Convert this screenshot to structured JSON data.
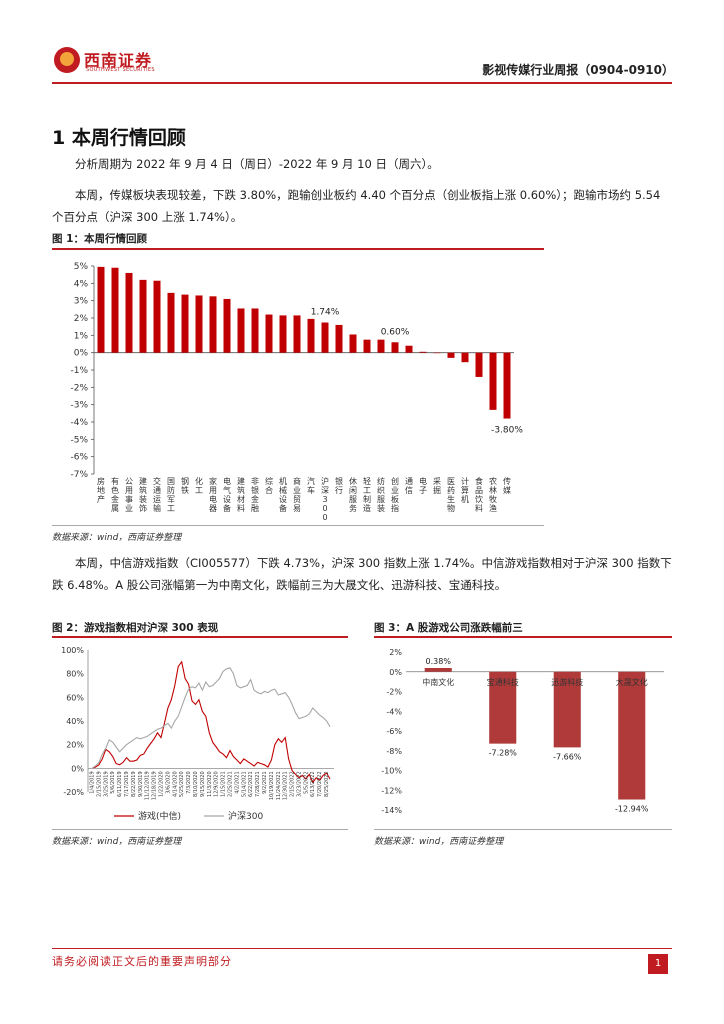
{
  "header": {
    "logo_cn": "西南证券",
    "logo_en": "SOUTHWEST SECURITIES",
    "report_title": "影视传媒行业周报（0904-0910）"
  },
  "section_title": "1  本周行情回顾",
  "paragraphs": [
    "分析周期为 2022 年 9 月 4 日（周日）-2022 年 9 月 10 日（周六）。",
    "本周，传媒板块表现较差，下跌 3.80%，跑输创业板约 4.40 个百分点（创业板指上涨 0.60%）；跑输市场约 5.54 个百分点（沪深 300 上涨 1.74%）。",
    "本周，中信游戏指数（CI005577）下跌 4.73%，沪深 300 指数上涨 1.74%。中信游戏指数相对于沪深 300 指数下跌 6.48%。A 股公司涨幅第一为中南文化，跌幅前三为大晟文化、迅游科技、宝通科技。"
  ],
  "figure1": {
    "title": "图 1：本周行情回顾",
    "source": "数据来源：wind，西南证券整理"
  },
  "figure2": {
    "title": "图 2：游戏指数相对沪深 300 表现",
    "legend_game": "游戏(中信)",
    "legend_hs300": "沪深300",
    "source": "数据来源：wind，西南证券整理"
  },
  "figure3": {
    "title": "图 3：A 股游戏公司涨跌幅前三",
    "source": "数据来源：wind，西南证券整理"
  },
  "footer": {
    "note": "请务必阅读正文后的重要声明部分",
    "page": "1"
  },
  "colors": {
    "brand_red": "#c01b20",
    "bar_red": "#c00000",
    "bar_dark_red": "#b03a3a",
    "line_gray": "#a6a6a6"
  },
  "chart_data": [
    {
      "type": "bar",
      "title": "",
      "categories": [
        "房地产",
        "有色金属",
        "公用事业",
        "建筑装饰",
        "交通运输",
        "国防军工",
        "钢铁",
        "化工",
        "家用电器",
        "电气设备",
        "建筑材料",
        "非银金融",
        "综合",
        "机械设备",
        "商业贸易",
        "汽车",
        "沪深300",
        "银行",
        "休闲服务",
        "轻工制造",
        "纺织服装",
        "创业板指",
        "通信",
        "电子",
        "采掘",
        "医药生物",
        "计算机",
        "食品饮料",
        "农林牧渔",
        "传媒"
      ],
      "values": [
        4.95,
        4.9,
        4.6,
        4.2,
        4.15,
        3.45,
        3.35,
        3.3,
        3.25,
        3.1,
        2.55,
        2.55,
        2.2,
        2.15,
        2.15,
        1.95,
        1.74,
        1.6,
        1.05,
        0.75,
        0.75,
        0.6,
        0.4,
        0.05,
        0.0,
        -0.3,
        -0.55,
        -1.4,
        -3.3,
        -3.8
      ],
      "data_labels": [
        {
          "index": 16,
          "text": "1.74%"
        },
        {
          "index": 21,
          "text": "0.60%"
        },
        {
          "index": 29,
          "text": "-3.80%"
        }
      ],
      "yticks": [
        "5%",
        "4%",
        "3%",
        "2%",
        "1%",
        "0%",
        "-1%",
        "-2%",
        "-3%",
        "-4%",
        "-5%",
        "-6%",
        "-7%"
      ],
      "ylim": [
        -7,
        5
      ],
      "xlabel": "",
      "ylabel": "",
      "grid": false
    },
    {
      "type": "line",
      "title": "",
      "x": [
        "1/4/2019",
        "1/23/2019",
        "2/15/2019",
        "3/6/2019",
        "3/25/2019",
        "4/11/2019",
        "5/6/2019",
        "5/23/2019",
        "6/11/2019",
        "6/28/2019",
        "7/17/2019",
        "8/5/2019",
        "8/22/2019",
        "9/10/2019",
        "9/30/2019",
        "10/24/2019",
        "11/12/2019",
        "11/29/2019",
        "12/18/2019",
        "1/7/2020",
        "1/22/2020",
        "2/18/2020",
        "3/6/2020",
        "3/25/2020",
        "4/14/2020",
        "5/6/2020",
        "5/25/2020",
        "6/12/2020",
        "7/3/2020",
        "7/22/2020",
        "8/10/2020",
        "8/27/2020",
        "9/15/2020",
        "10/13/2020",
        "11/3/2020",
        "11/20/2020",
        "12/9/2020",
        "12/28/2020",
        "1/15/2021",
        "2/3/2021",
        "2/25/2021",
        "3/16/2021",
        "4/2/2021",
        "4/22/2021",
        "5/14/2021",
        "6/2/2021",
        "6/22/2021",
        "7/9/2021",
        "7/28/2021",
        "8/16/2021",
        "9/2/2021",
        "9/22/2021",
        "10/19/2021",
        "11/5/2021",
        "11/24/2021",
        "12/13/2021",
        "12/30/2021",
        "1/19/2022",
        "2/15/2022",
        "3/4/2022",
        "3/23/2022",
        "4/12/2022",
        "5/5/2022",
        "5/24/2022",
        "6/13/2022",
        "7/1/2022",
        "7/20/2022",
        "8/8/2022",
        "8/25/2022",
        "9/9/2022"
      ],
      "series": [
        {
          "name": "游戏(中信)",
          "values": [
            0,
            1,
            3,
            8,
            16,
            14,
            10,
            4,
            3,
            5,
            9,
            6,
            6,
            7,
            11,
            12,
            17,
            21,
            25,
            30,
            26,
            38,
            51,
            58,
            70,
            86,
            90,
            76,
            71,
            57,
            54,
            58,
            48,
            44,
            30,
            22,
            18,
            14,
            12,
            9,
            15,
            10,
            7,
            4,
            8,
            6,
            4,
            2,
            5,
            4,
            3,
            1,
            7,
            20,
            25,
            22,
            26,
            8,
            -2,
            -5,
            -8,
            -6,
            -9,
            -5,
            -12,
            -8,
            -10,
            -6,
            -4,
            -9
          ]
        },
        {
          "name": "沪深300",
          "values": [
            0,
            2,
            5,
            12,
            17,
            24,
            22,
            18,
            14,
            17,
            20,
            22,
            24,
            26,
            25,
            26,
            27,
            29,
            31,
            33,
            34,
            36,
            38,
            34,
            40,
            44,
            52,
            60,
            67,
            69,
            68,
            72,
            66,
            73,
            69,
            70,
            73,
            76,
            82,
            84,
            85,
            80,
            70,
            68,
            69,
            70,
            75,
            66,
            64,
            63,
            65,
            64,
            66,
            67,
            62,
            63,
            64,
            60,
            54,
            47,
            42,
            43,
            44,
            46,
            51,
            48,
            45,
            43,
            40,
            35
          ]
        }
      ],
      "yticks": [
        "100%",
        "80%",
        "60%",
        "40%",
        "20%",
        "0%",
        "-20%"
      ],
      "ylim": [
        -20,
        100
      ],
      "legend": "bottom"
    },
    {
      "type": "bar",
      "title": "",
      "categories": [
        "中南文化",
        "宝通科技",
        "迅游科技",
        "大晟文化"
      ],
      "values": [
        0.38,
        -7.28,
        -7.66,
        -12.94
      ],
      "data_labels": [
        "0.38%",
        "-7.28%",
        "-7.66%",
        "-12.94%"
      ],
      "yticks": [
        "2%",
        "0%",
        "-2%",
        "-4%",
        "-6%",
        "-8%",
        "-10%",
        "-12%",
        "-14%"
      ],
      "ylim": [
        -14,
        2
      ]
    }
  ]
}
